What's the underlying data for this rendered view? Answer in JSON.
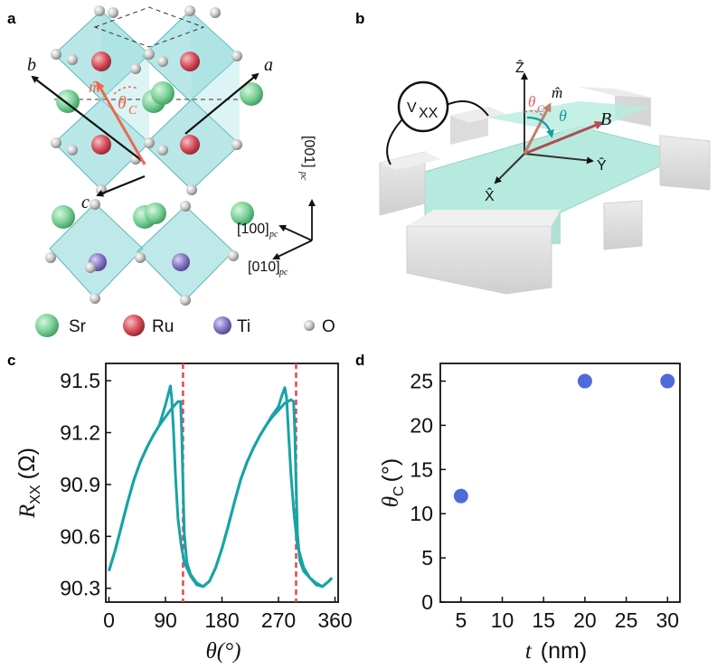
{
  "panels": {
    "a": {
      "label": "a",
      "axes": {
        "a": "a",
        "b": "b",
        "c": "c",
        "m": "m̂",
        "theta_c": "θ",
        "theta_c_sub": "C"
      },
      "directions": {
        "d001": "[001]",
        "d100": "[100]",
        "d010": "[010]",
        "pc": "pc"
      },
      "legend": [
        {
          "label": "Sr",
          "color": "#7fd39a"
        },
        {
          "label": "Ru",
          "color": "#d9525e"
        },
        {
          "label": "Ti",
          "color": "#8a79c8"
        },
        {
          "label": "O",
          "color": "#c8c8c8"
        }
      ]
    },
    "b": {
      "label": "b",
      "voltmeter": "V",
      "voltmeter_sub": "XX",
      "axes": {
        "Z": "Ẑ",
        "Y": "Ŷ",
        "X": "X̂",
        "B": "B",
        "m": "m̂",
        "theta": "θ",
        "theta_c": "θ",
        "theta_c_sub": "C"
      }
    },
    "c": {
      "label": "c"
    },
    "d": {
      "label": "d"
    }
  },
  "chart_data": [
    {
      "panel": "c",
      "type": "line",
      "xlabel": "θ(°)",
      "ylabel_main": "R",
      "ylabel_sub": "XX",
      "ylabel_unit": "(Ω)",
      "xlim": [
        -5,
        365
      ],
      "ylim": [
        90.22,
        91.6
      ],
      "xticks": [
        0,
        90,
        180,
        270,
        360
      ],
      "yticks": [
        90.3,
        90.6,
        90.9,
        91.2,
        91.5
      ],
      "ytick_labels": [
        "90.3",
        "90.6",
        "90.9",
        "91.2",
        "91.5"
      ],
      "line_color": "#17a3a6",
      "series": [
        {
          "x": [
            0,
            10,
            20,
            30,
            40,
            50,
            60,
            70,
            80,
            90,
            100,
            110,
            114,
            116,
            118,
            120,
            124,
            130,
            140,
            150,
            160,
            170,
            180,
            190,
            200,
            210,
            220,
            230,
            240,
            250,
            260,
            270,
            280,
            290,
            294,
            296,
            298,
            300,
            304,
            310,
            320,
            330,
            340,
            350,
            355
          ],
          "y": [
            90.4,
            90.52,
            90.66,
            90.8,
            90.93,
            91.03,
            91.11,
            91.18,
            91.24,
            91.29,
            91.34,
            91.38,
            91.38,
            91.2,
            90.9,
            90.62,
            90.45,
            90.38,
            90.33,
            90.31,
            90.34,
            90.42,
            90.53,
            90.66,
            90.8,
            90.93,
            91.03,
            91.11,
            91.18,
            91.24,
            91.29,
            91.33,
            91.37,
            91.39,
            91.38,
            91.2,
            90.9,
            90.62,
            90.46,
            90.4,
            90.36,
            90.33,
            90.31,
            90.34,
            90.36
          ]
        },
        {
          "x": [
            0,
            10,
            20,
            30,
            40,
            50,
            60,
            70,
            80,
            85,
            90,
            95,
            98,
            100,
            103,
            106,
            110,
            115,
            120,
            130,
            140,
            150,
            160,
            170,
            180,
            190,
            200,
            210,
            220,
            230,
            240,
            250,
            260,
            270,
            275,
            280,
            283,
            286,
            290,
            295,
            300,
            310,
            320,
            330,
            340,
            350,
            355
          ],
          "y": [
            90.4,
            90.52,
            90.66,
            90.8,
            90.93,
            91.03,
            91.11,
            91.18,
            91.24,
            91.3,
            91.36,
            91.43,
            91.47,
            91.4,
            91.2,
            90.95,
            90.7,
            90.55,
            90.45,
            90.37,
            90.32,
            90.31,
            90.34,
            90.42,
            90.53,
            90.66,
            90.8,
            90.93,
            91.03,
            91.11,
            91.18,
            91.24,
            91.3,
            91.35,
            91.41,
            91.46,
            91.4,
            91.2,
            90.95,
            90.72,
            90.55,
            90.42,
            90.36,
            90.32,
            90.31,
            90.34,
            90.36
          ]
        }
      ],
      "vlines": [
        118,
        298
      ],
      "vline_color": "#e8454b"
    },
    {
      "panel": "d",
      "type": "scatter",
      "xlabel_var": "t",
      "xlabel_unit": "(nm)",
      "ylabel_main": "θ",
      "ylabel_sub": "C",
      "ylabel_unit": "(°)",
      "xlim": [
        2.5,
        31.5
      ],
      "ylim": [
        0,
        27
      ],
      "xticks": [
        5,
        10,
        15,
        20,
        25,
        30
      ],
      "yticks": [
        0,
        5,
        10,
        15,
        20,
        25
      ],
      "points": [
        {
          "x": 5,
          "y": 12
        },
        {
          "x": 20,
          "y": 25
        },
        {
          "x": 30,
          "y": 25
        }
      ],
      "marker_color": "#4f6bd8"
    }
  ]
}
